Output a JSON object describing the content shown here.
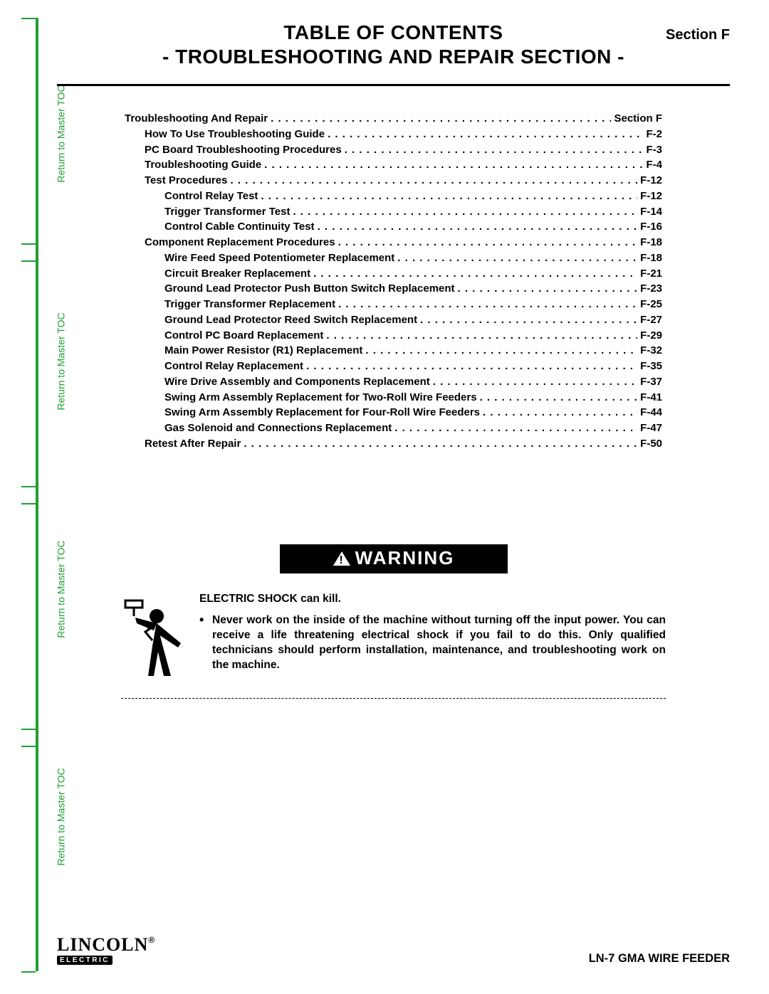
{
  "colors": {
    "green": "#1fa031",
    "text": "#000000",
    "bg": "#ffffff"
  },
  "side_tabs": {
    "label": "Return to Master TOC"
  },
  "header": {
    "title1": "TABLE OF CONTENTS",
    "title2": "- TROUBLESHOOTING AND REPAIR SECTION -",
    "section": "Section F"
  },
  "toc": [
    {
      "level": 1,
      "label": "Troubleshooting And Repair",
      "page": "Section F"
    },
    {
      "level": 2,
      "label": "How To Use Troubleshooting Guide",
      "page": "F-2"
    },
    {
      "level": 2,
      "label": "PC Board Troubleshooting Procedures",
      "page": "F-3"
    },
    {
      "level": 2,
      "label": "Troubleshooting Guide",
      "page": "F-4"
    },
    {
      "level": 2,
      "label": "Test Procedures",
      "page": "F-12"
    },
    {
      "level": 3,
      "label": "Control Relay Test",
      "page": "F-12"
    },
    {
      "level": 3,
      "label": "Trigger Transformer Test",
      "page": "F-14"
    },
    {
      "level": 3,
      "label": "Control Cable Continuity Test",
      "page": "F-16"
    },
    {
      "level": 2,
      "label": "Component Replacement Procedures",
      "page": "F-18"
    },
    {
      "level": 3,
      "label": "Wire Feed Speed Potentiometer Replacement",
      "page": "F-18"
    },
    {
      "level": 3,
      "label": "Circuit Breaker Replacement",
      "page": "F-21"
    },
    {
      "level": 3,
      "label": "Ground Lead Protector Push Button Switch Replacement",
      "page": "F-23"
    },
    {
      "level": 3,
      "label": "Trigger Transformer Replacement",
      "page": "F-25"
    },
    {
      "level": 3,
      "label": "Ground Lead Protector Reed Switch Replacement",
      "page": "F-27"
    },
    {
      "level": 3,
      "label": "Control PC Board Replacement",
      "page": "F-29"
    },
    {
      "level": 3,
      "label": "Main Power Resistor (R1) Replacement",
      "page": "F-32"
    },
    {
      "level": 3,
      "label": "Control Relay Replacement",
      "page": "F-35"
    },
    {
      "level": 3,
      "label": "Wire Drive Assembly and Components Replacement",
      "page": "F-37"
    },
    {
      "level": 3,
      "label": "Swing Arm Assembly Replacement for Two-Roll Wire Feeders",
      "page": "F-41"
    },
    {
      "level": 3,
      "label": "Swing Arm Assembly Replacement for Four-Roll Wire Feeders",
      "page": "F-44"
    },
    {
      "level": 3,
      "label": "Gas Solenoid and Connections Replacement",
      "page": "F-47"
    },
    {
      "level": 2,
      "label": "Retest After Repair",
      "page": "F-50"
    }
  ],
  "warning": {
    "banner": "WARNING",
    "headline": "ELECTRIC SHOCK can kill.",
    "bullet": "Never work on the inside of the machine without turning off the input power. You can receive a life threatening electrical shock if you fail to do this. Only qualified technicians should perform installation, maintenance, and troubleshooting work on the machine."
  },
  "footer": {
    "logo_top": "LINCOLN",
    "logo_sub": "ELECTRIC",
    "right": "LN-7 GMA WIRE FEEDER"
  }
}
